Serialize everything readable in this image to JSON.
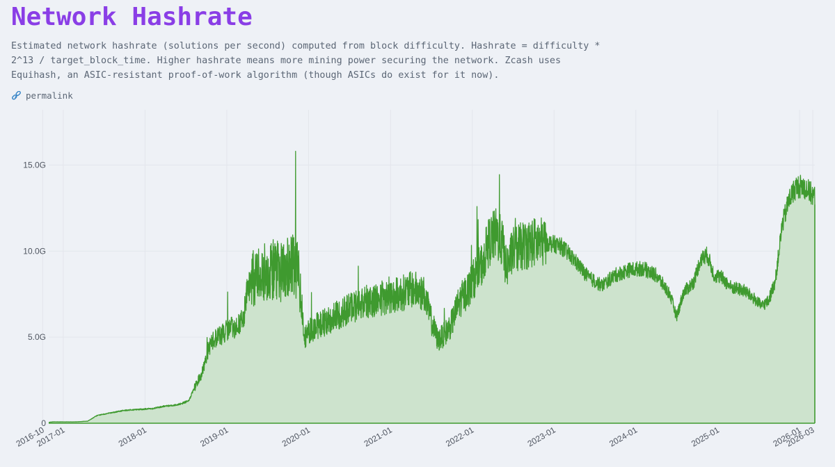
{
  "page": {
    "title": "Network Hashrate",
    "description": "Estimated network hashrate (solutions per second) computed from block difficulty. Hashrate = difficulty * 2^13 / target_block_time. Higher hashrate means more mining power securing the network. Zcash uses Equihash, an ASIC-resistant proof-of-work algorithm (though ASICs do exist for it now).",
    "permalink_label": "permalink",
    "permalink_icon": "link-icon"
  },
  "colors": {
    "title": "#8a3ee6",
    "line": "#3f9a2f",
    "fill": "#cde3cd",
    "grid": "#e3e6ec",
    "axis": "#3f9a2f"
  },
  "chart_data": {
    "type": "area",
    "title": "",
    "xlabel": "",
    "ylabel": "",
    "ylim": [
      0,
      17000000000
    ],
    "xlim": [
      "2016-10-28",
      "2026-03-10"
    ],
    "grid": true,
    "legend": "none",
    "x_ticks": [
      "2016-10",
      "2017-01",
      "2018-01",
      "2019-01",
      "2020-01",
      "2021-01",
      "2022-01",
      "2023-01",
      "2024-01",
      "2025-01",
      "2026-01",
      "2026-03"
    ],
    "y_ticks": [
      0,
      5000000000,
      10000000000,
      15000000000
    ],
    "y_tick_labels": [
      "0",
      "5.0G",
      "10.0G",
      "15.0G"
    ],
    "series": [
      {
        "x": [
          "2016-10-28",
          "2016-11-15",
          "2017-01-01",
          "2017-03-01",
          "2017-04-20",
          "2017-06-01",
          "2017-08-01",
          "2017-10-01",
          "2017-12-01",
          "2018-02-01",
          "2018-04-01",
          "2018-05-15",
          "2018-06-15",
          "2018-07-15",
          "2018-08-01",
          "2018-09-15",
          "2018-10-15",
          "2018-11-15",
          "2018-12-15",
          "2019-01-15",
          "2019-02-15",
          "2019-03-15",
          "2019-04-01",
          "2019-05-01",
          "2019-06-01",
          "2019-07-01",
          "2019-08-01",
          "2019-09-01",
          "2019-10-01",
          "2019-10-20",
          "2019-11-10",
          "2019-11-20",
          "2019-12-15",
          "2020-01-15",
          "2020-03-01",
          "2020-05-01",
          "2020-07-01",
          "2020-09-01",
          "2020-11-01",
          "2021-01-15",
          "2021-03-01",
          "2021-04-15",
          "2021-06-01",
          "2021-07-01",
          "2021-08-01",
          "2021-09-01",
          "2021-10-01",
          "2021-11-01",
          "2021-12-15",
          "2022-01-15",
          "2022-02-15",
          "2022-03-15",
          "2022-04-15",
          "2022-05-15",
          "2022-06-01",
          "2022-07-01",
          "2022-08-15",
          "2022-10-01",
          "2022-12-01",
          "2023-02-01",
          "2023-04-01",
          "2023-06-01",
          "2023-08-01",
          "2023-10-01",
          "2023-12-01",
          "2024-02-01",
          "2024-04-01",
          "2024-06-01",
          "2024-07-01",
          "2024-08-01",
          "2024-09-15",
          "2024-10-15",
          "2024-11-15",
          "2024-12-15",
          "2025-01-15",
          "2025-03-01",
          "2025-05-01",
          "2025-06-15",
          "2025-07-15",
          "2025-08-15",
          "2025-09-15",
          "2025-10-15",
          "2025-11-15",
          "2025-12-15",
          "2026-01-15",
          "2026-02-10",
          "2026-03-05"
        ],
        "values": [
          0.05,
          0.08,
          0.08,
          0.08,
          0.12,
          0.45,
          0.6,
          0.75,
          0.8,
          0.85,
          1.0,
          1.05,
          1.15,
          1.3,
          1.8,
          3.0,
          4.5,
          5.0,
          5.2,
          5.5,
          5.6,
          6.0,
          7.5,
          8.5,
          8.8,
          8.8,
          9.0,
          8.8,
          9.0,
          9.2,
          9.0,
          8.5,
          5.0,
          5.5,
          5.8,
          6.2,
          6.7,
          7.0,
          7.2,
          7.4,
          7.6,
          7.8,
          7.5,
          6.0,
          4.8,
          5.2,
          5.8,
          7.0,
          7.8,
          8.6,
          9.3,
          10.5,
          11.0,
          10.5,
          9.0,
          10.0,
          10.3,
          10.5,
          10.5,
          10.3,
          9.5,
          8.5,
          8.0,
          8.6,
          8.9,
          9.0,
          8.6,
          7.5,
          6.2,
          7.6,
          8.2,
          9.5,
          9.8,
          8.6,
          8.5,
          7.9,
          7.7,
          7.2,
          6.8,
          7.1,
          8.3,
          11.5,
          13.0,
          13.7,
          13.8,
          13.5,
          13.2
        ]
      }
    ]
  }
}
